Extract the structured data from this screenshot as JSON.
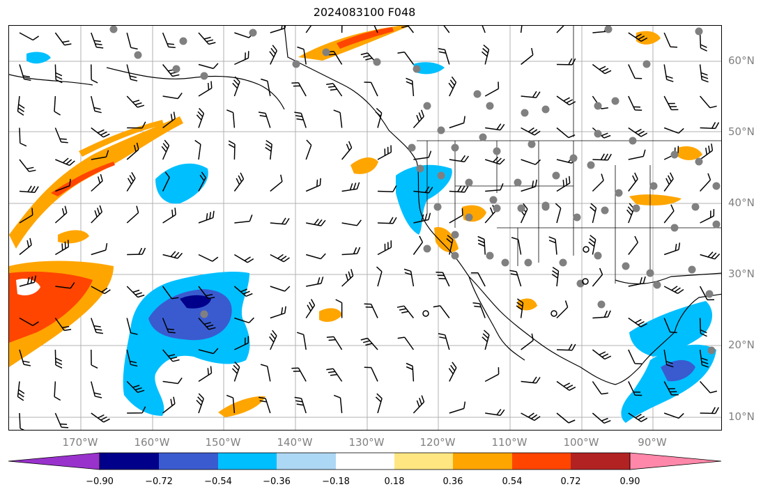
{
  "title": "2024083100 F048",
  "map": {
    "lat_labels": [
      "60°N",
      "50°N",
      "40°N",
      "30°N",
      "20°N",
      "10°N"
    ],
    "lon_labels": [
      "170°W",
      "160°W",
      "150°W",
      "140°W",
      "130°W",
      "120°W",
      "110°W",
      "100°W",
      "90°W"
    ]
  },
  "colorbar": {
    "tick_labels": [
      "−0.90",
      "−0.72",
      "−0.54",
      "−0.36",
      "−0.18",
      "0.18",
      "0.36",
      "0.54",
      "0.72",
      "0.90"
    ],
    "colors": [
      "#9932cc",
      "#00008b",
      "#3a5bd0",
      "#00bfff",
      "#add8f5",
      "#ffffff",
      "#ffe680",
      "#ffa500",
      "#ff4500",
      "#b22222",
      "#ff88aa"
    ]
  },
  "colors": {
    "land_outline": "#000000",
    "grid": "#b0b0b0",
    "station_marker": "#808080",
    "label_gray": "#808080"
  }
}
